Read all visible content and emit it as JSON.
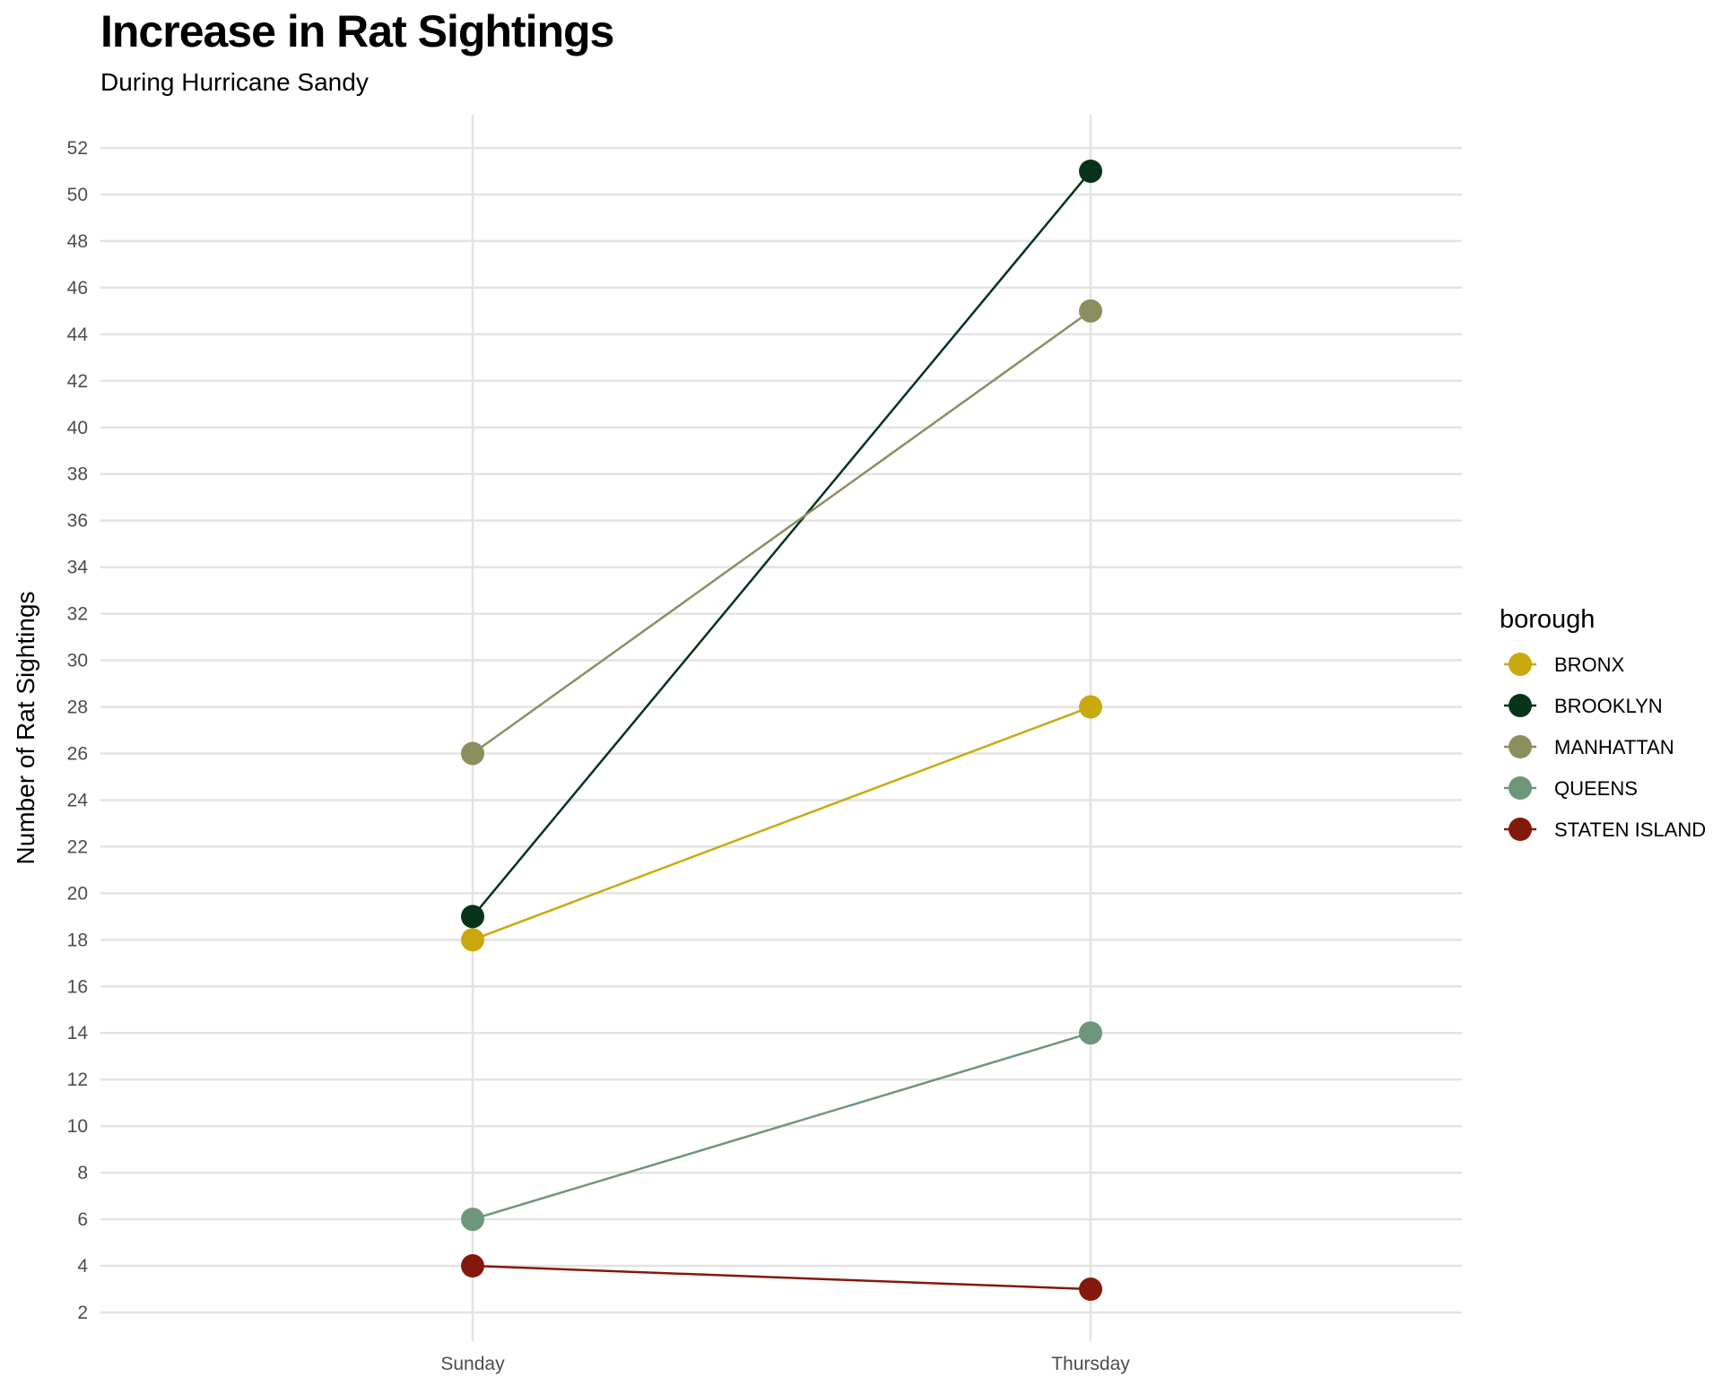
{
  "title": "Increase in Rat Sightings",
  "subtitle": "During Hurricane Sandy",
  "chart_data": {
    "type": "line",
    "title": "Increase in Rat Sightings",
    "subtitle": "During Hurricane Sandy",
    "xlabel": "",
    "ylabel": "Number of Rat Sightings",
    "categories": [
      "Sunday",
      "Thursday"
    ],
    "ylim": [
      2,
      52
    ],
    "yticks": [
      2,
      4,
      6,
      8,
      10,
      12,
      14,
      16,
      18,
      20,
      22,
      24,
      26,
      28,
      30,
      32,
      34,
      36,
      38,
      40,
      42,
      44,
      46,
      48,
      50,
      52
    ],
    "grid": true,
    "legend_title": "borough",
    "legend_position": "right",
    "series": [
      {
        "name": "BRONX",
        "values": [
          18,
          28
        ],
        "color": "#C9A90E"
      },
      {
        "name": "BROOKLYN",
        "values": [
          19,
          51
        ],
        "color": "#06331A"
      },
      {
        "name": "MANHATTAN",
        "values": [
          26,
          45
        ],
        "color": "#8B8F5E"
      },
      {
        "name": "QUEENS",
        "values": [
          6,
          14
        ],
        "color": "#6E967A"
      },
      {
        "name": "STATEN ISLAND",
        "values": [
          4,
          3
        ],
        "color": "#85180D"
      }
    ]
  }
}
